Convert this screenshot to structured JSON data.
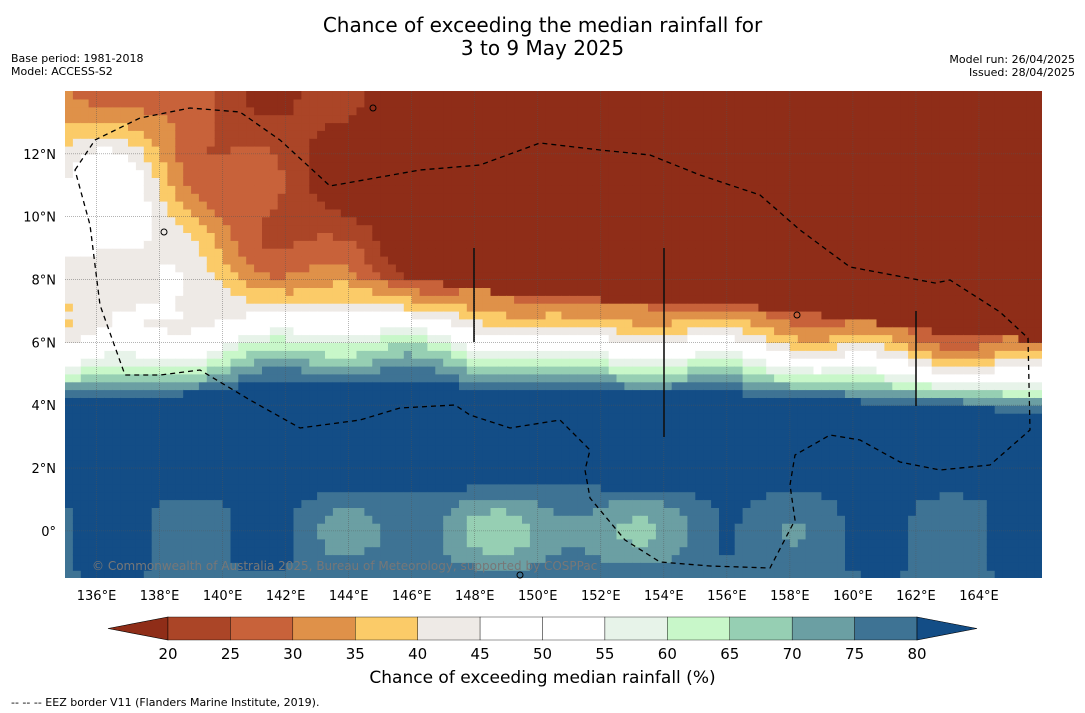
{
  "title": {
    "line1": "Chance of exceeding the median rainfall for",
    "line2": "3 to 9 May 2025"
  },
  "meta_left": {
    "base_period": "Base period: 1981-2018",
    "model": "Model: ACCESS-S2"
  },
  "meta_right": {
    "model_run": "Model run: 26/04/2025",
    "issued": "Issued: 28/04/2025"
  },
  "map": {
    "lon_range": [
      135,
      166
    ],
    "lat_range": [
      -1.5,
      14
    ],
    "lon_ticks": [
      136,
      138,
      140,
      142,
      144,
      146,
      148,
      150,
      152,
      154,
      156,
      158,
      160,
      162,
      164
    ],
    "lon_tick_labels": [
      "136°E",
      "138°E",
      "140°E",
      "142°E",
      "144°E",
      "146°E",
      "148°E",
      "150°E",
      "152°E",
      "154°E",
      "156°E",
      "158°E",
      "160°E",
      "162°E",
      "164°E"
    ],
    "lat_ticks": [
      0,
      2,
      4,
      6,
      8,
      10,
      12
    ],
    "lat_tick_labels": [
      "0°",
      "2°N",
      "4°N",
      "6°N",
      "8°N",
      "10°N",
      "12°N"
    ],
    "grid": true,
    "watermark": "© Commonwealth of Australia 2025, Bureau of Meteorology, supported by COSPPac"
  },
  "colorbar": {
    "title": "Chance of exceeding median rainfall (%)",
    "ticks": [
      "20",
      "25",
      "30",
      "35",
      "40",
      "45",
      "50",
      "55",
      "60",
      "65",
      "70",
      "75",
      "80"
    ],
    "colors": {
      "under": "#8f2d18",
      "bins": [
        "#ab4527",
        "#c8623a",
        "#df9149",
        "#fbcb68",
        "#eeeae6",
        "#ffffff",
        "#ffffff",
        "#e7f3e9",
        "#c8f7c9",
        "#96cfb3",
        "#6b9fa3",
        "#3e7394"
      ],
      "over": "#134d86"
    }
  },
  "footer": "--  --  -- EEZ border V11 (Flanders Marine Institute, 2019)."
}
